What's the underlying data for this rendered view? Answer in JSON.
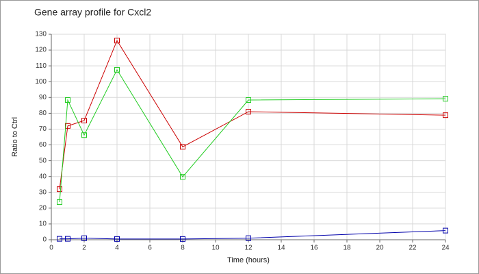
{
  "chart_data": {
    "type": "line",
    "title": "Gene array profile for Cxcl2",
    "x_label": "Time (hours)",
    "y_label": "Ratio to Ctrl",
    "x": [
      0.5,
      1,
      2,
      4,
      8,
      12,
      24
    ],
    "series": [
      {
        "color": "#cc0000",
        "values": [
          32,
          72,
          75.4,
          126,
          58.8,
          81,
          78.8
        ]
      },
      {
        "color": "#22cc22",
        "values": [
          23.8,
          88.4,
          66.2,
          107.5,
          39.8,
          88.4,
          89.2
        ]
      },
      {
        "color": "#0000aa",
        "values": [
          0.6,
          0.6,
          1,
          0.5,
          0.5,
          1,
          5.8
        ]
      }
    ],
    "xlim": [
      0,
      24
    ],
    "xticks": [
      0,
      2,
      4,
      6,
      8,
      10,
      12,
      14,
      16,
      18,
      20,
      22,
      24
    ],
    "ylim": [
      0,
      130
    ],
    "yticks": [
      0,
      10,
      20,
      30,
      40,
      50,
      60,
      70,
      80,
      90,
      100,
      110,
      120,
      130
    ],
    "grid": true
  }
}
